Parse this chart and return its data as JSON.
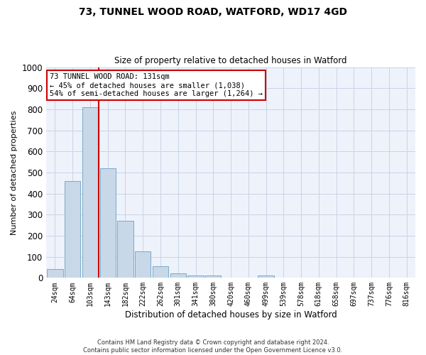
{
  "title": "73, TUNNEL WOOD ROAD, WATFORD, WD17 4GD",
  "subtitle": "Size of property relative to detached houses in Watford",
  "xlabel": "Distribution of detached houses by size in Watford",
  "ylabel": "Number of detached properties",
  "footer_line1": "Contains HM Land Registry data © Crown copyright and database right 2024.",
  "footer_line2": "Contains public sector information licensed under the Open Government Licence v3.0.",
  "bin_labels": [
    "24sqm",
    "64sqm",
    "103sqm",
    "143sqm",
    "182sqm",
    "222sqm",
    "262sqm",
    "301sqm",
    "341sqm",
    "380sqm",
    "420sqm",
    "460sqm",
    "499sqm",
    "539sqm",
    "578sqm",
    "618sqm",
    "658sqm",
    "697sqm",
    "737sqm",
    "776sqm",
    "816sqm"
  ],
  "bar_values": [
    40,
    460,
    810,
    520,
    270,
    125,
    55,
    20,
    10,
    10,
    0,
    0,
    10,
    0,
    0,
    0,
    0,
    0,
    0,
    0,
    0
  ],
  "bar_color": "#c8d8e8",
  "bar_edge_color": "#7aaac8",
  "property_bin_index": 2,
  "vline_color": "#cc0000",
  "annotation_text": "73 TUNNEL WOOD ROAD: 131sqm\n← 45% of detached houses are smaller (1,038)\n54% of semi-detached houses are larger (1,264) →",
  "annotation_box_color": "#ffffff",
  "annotation_box_edge": "#cc0000",
  "ylim": [
    0,
    1000
  ],
  "yticks": [
    0,
    100,
    200,
    300,
    400,
    500,
    600,
    700,
    800,
    900,
    1000
  ],
  "grid_color": "#c8d4e8",
  "background_color": "#ffffff",
  "ax_background_color": "#eef2fa"
}
